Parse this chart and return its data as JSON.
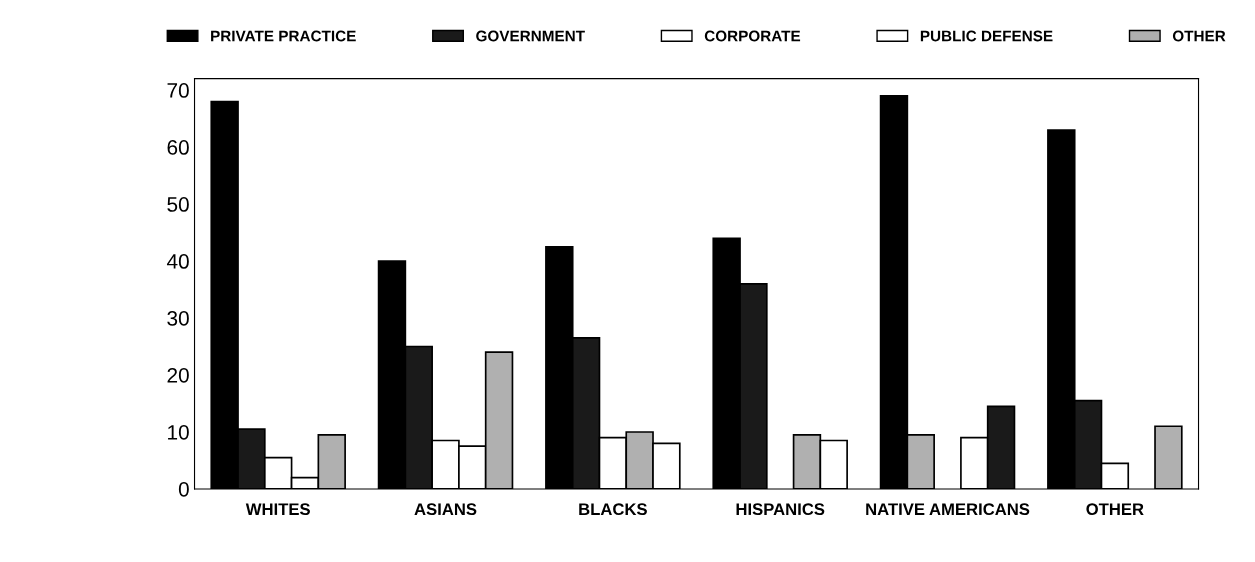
{
  "chart_data": {
    "type": "bar",
    "categories": [
      "WHITES",
      "ASIANS",
      "BLACKS",
      "HISPANICS",
      "NATIVE AMERICANS",
      "OTHER"
    ],
    "series": [
      {
        "name": "PRIVATE PRACTICE",
        "color": "#000000",
        "values": [
          68,
          40,
          42.5,
          44,
          69,
          63
        ]
      },
      {
        "name": "GOVERNMENT",
        "color": "#1a1a1a",
        "values": [
          10.5,
          25,
          26.5,
          36,
          9.5,
          15.5
        ],
        "colors": [
          "#1a1a1a",
          "#1a1a1a",
          "#1a1a1a",
          "#1a1a1a",
          "#b0b0b0",
          "#1a1a1a"
        ]
      },
      {
        "name": "CORPORATE",
        "color": "#ffffff",
        "values": [
          5.5,
          8.5,
          9,
          null,
          null,
          4.5
        ]
      },
      {
        "name": "PUBLIC DEFENSE",
        "color": "#ffffff",
        "values": [
          2,
          7.5,
          10,
          9.5,
          9,
          null
        ],
        "colors": [
          "#ffffff",
          "#ffffff",
          "#b0b0b0",
          "#b0b0b0",
          "#ffffff",
          "#ffffff"
        ]
      },
      {
        "name": "OTHER",
        "color": "#b0b0b0",
        "values": [
          9.5,
          24,
          8,
          8.5,
          14.5,
          11
        ],
        "colors": [
          "#b0b0b0",
          "#b0b0b0",
          "#ffffff",
          "#ffffff",
          "#1a1a1a",
          "#b0b0b0"
        ]
      }
    ],
    "ylim": [
      0,
      72
    ],
    "yticks": [
      0,
      10,
      20,
      30,
      40,
      50,
      60,
      70
    ],
    "grid": false,
    "legend": "top"
  }
}
